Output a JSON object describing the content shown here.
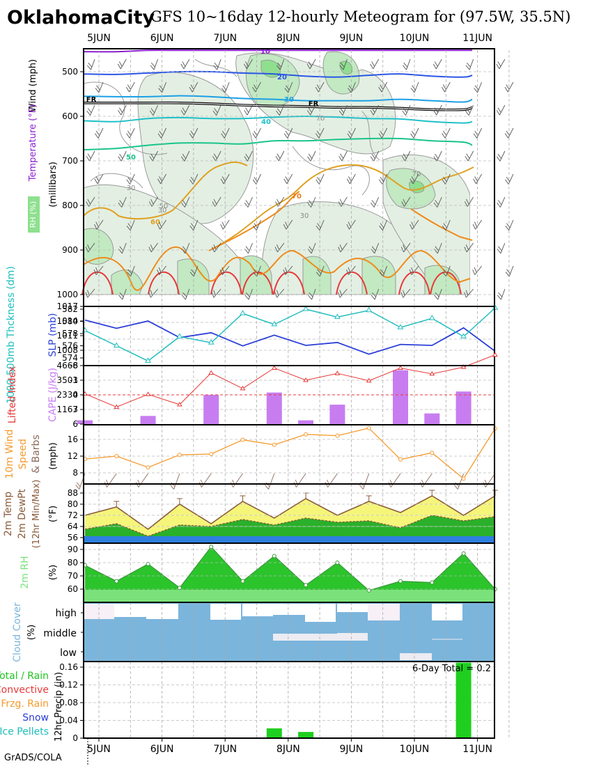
{
  "header": {
    "city": "OklahomaCity",
    "title": "GFS 10~16day 12-hourly Meteogram for (97.5W, 35.5N)"
  },
  "footer": {
    "credit": "GrADS/COLA"
  },
  "days": [
    "5JUN",
    "6JUN",
    "7JUN",
    "8JUN",
    "9JUN",
    "10JUN",
    "11JUN"
  ],
  "colors": {
    "rh_light": "#e3efe3",
    "rh_mid": "#c2e9c2",
    "rh_dark": "#8ee08e",
    "slp": "#2b3fd6",
    "thickness": "#1fbdbd",
    "lifted": "#e83838",
    "cape": "#c77df0",
    "wind": "#f59a2c",
    "barb": "#8a6a5a",
    "temp_fill": "#f5f57a",
    "dew_fill": "#2ab02a",
    "cold_band": "#2e7fe0",
    "rh2m_dark": "#2bc42b",
    "rh2m_light": "#7be27b",
    "cloud": "#7bb5dc",
    "rain": "#1fcf1f"
  },
  "chart_data": [
    {
      "type": "contour",
      "panel": "upper-air",
      "ylabel": [
        "Wind (mph)",
        "Temperature (°F)",
        "RH (%)",
        "(millibars)"
      ],
      "yticks": [
        500,
        600,
        700,
        800,
        900,
        1000
      ],
      "ylim": [
        1000,
        450
      ],
      "freezing_label": "FR",
      "contours": [
        {
          "label": "10",
          "color": "#8a1fd0",
          "p": [
            455,
            455,
            452,
            452,
            452,
            452,
            452,
            452,
            452,
            452,
            452,
            452,
            452,
            452
          ]
        },
        {
          "label": "20",
          "color": "#2a56e6",
          "p": [
            505,
            506,
            503,
            500,
            500,
            503,
            505,
            510,
            512,
            508,
            505,
            510,
            512,
            508
          ]
        },
        {
          "label": "30",
          "color": "#1aa0e6",
          "p": [
            555,
            556,
            556,
            554,
            556,
            560,
            562,
            565,
            565,
            565,
            562,
            565,
            568,
            562
          ]
        },
        {
          "label": "FR",
          "color": "#000000",
          "p": [
            570,
            570,
            570,
            570,
            572,
            575,
            577,
            578,
            580,
            580,
            582,
            585,
            585,
            580
          ]
        },
        {
          "label": "40",
          "color": "#1ec0c8",
          "p": [
            610,
            612,
            605,
            603,
            605,
            605,
            602,
            600,
            602,
            605,
            606,
            612,
            615,
            612
          ]
        },
        {
          "label": "50",
          "color": "#19c48a",
          "p": [
            675,
            672,
            665,
            660,
            660,
            662,
            655,
            655,
            652,
            650,
            650,
            655,
            658,
            665
          ]
        }
      ],
      "temp_labels": [
        "10",
        "20",
        "30",
        "40",
        "50",
        "60",
        "70",
        "FR"
      ],
      "rh_labels": [
        "30",
        "50",
        "70"
      ]
    },
    {
      "type": "line",
      "panel": "slp-thickness",
      "ylabel_left": "1000-500mb Thckness (dm)",
      "ylabel_right": "SLP (mb)",
      "thickness_ticks": [
        574,
        576,
        578,
        580,
        582
      ],
      "slp_ticks": [
        1008,
        1011,
        1014,
        1017
      ],
      "slp": {
        "name": "SLP (mb)",
        "values": [
          1014.2,
          1012.5,
          1014.0,
          1010.6,
          1011.6,
          1008.9,
          1011.1,
          1009.0,
          1009.6,
          1007.2,
          1009.2,
          1009.0,
          1012.6,
          1007.8
        ]
      },
      "thickness": {
        "name": "1000-500mb Thckness (dm)",
        "values": [
          578.5,
          576.0,
          573.5,
          577.5,
          576.5,
          581.3,
          579.5,
          582.0,
          580.7,
          581.8,
          579.0,
          580.5,
          577.5,
          582.2
        ]
      }
    },
    {
      "type": "bar",
      "panel": "cape-lifted",
      "ylabel_left": "Lifted Index",
      "ylabel_right": "CAPE (J/kg)",
      "li_ticks": [
        -6,
        -3,
        0,
        3,
        6
      ],
      "cape_ticks": [
        1167,
        2334,
        3501,
        4668
      ],
      "lifted_index": [
        -0.2,
        2.5,
        -0.1,
        2.0,
        -4.5,
        -1.3,
        -5.5,
        -3.0,
        -4.4,
        -2.9,
        -5.5,
        -4.3,
        -5.7,
        -8.2
      ],
      "cape": [
        300,
        0,
        650,
        0,
        2330,
        0,
        2520,
        300,
        1550,
        0,
        4300,
        850,
        2600,
        0
      ]
    },
    {
      "type": "line",
      "panel": "wind10m",
      "ylabel_left": "10m Wind Speed & Barbs",
      "ylabel_right": "(mph)",
      "yticks": [
        8,
        12,
        16
      ],
      "values": [
        11.3,
        12.0,
        9.3,
        12.3,
        12.5,
        15.9,
        14.7,
        17.2,
        16.9,
        18.7,
        11.2,
        12.8,
        6.6,
        18.6
      ]
    },
    {
      "type": "area",
      "panel": "temp2m",
      "ylabel_left": "2m Temp 2m DewPt (12hr Min/Max)",
      "ylabel_right": "(°F)",
      "yticks": [
        56,
        64,
        72,
        80,
        88
      ],
      "temperature": [
        72,
        78,
        62,
        80,
        66,
        82,
        70,
        84,
        72,
        82,
        74,
        86,
        72,
        86
      ],
      "dewpoint": [
        62,
        66,
        57,
        65,
        64,
        69,
        65,
        70,
        67,
        68,
        63,
        72,
        68,
        71
      ]
    },
    {
      "type": "area",
      "panel": "rh2m",
      "ylabel_left": "2m RH",
      "ylabel_right": "(%)",
      "yticks": [
        60,
        70,
        80,
        90
      ],
      "values": [
        78,
        66,
        79,
        61,
        92,
        66,
        85,
        63,
        80,
        59,
        66,
        65,
        87,
        60
      ]
    },
    {
      "type": "heatmap",
      "panel": "cloud",
      "ylabel_left": "Cloud Cover",
      "ylabel_right": "(%)",
      "levels": [
        "high",
        "middle",
        "low"
      ]
    },
    {
      "type": "bar",
      "panel": "precip",
      "ylabel": "12hr Precip (in)",
      "yticks": [
        0,
        0.04,
        0.08,
        0.12,
        0.16
      ],
      "total_label": "6-Day Total = 0.2",
      "legend": [
        {
          "label": "Total / Rain",
          "color": "#1fc41f"
        },
        {
          "label": "Convective",
          "color": "#e83838"
        },
        {
          "label": "Frzg. Rain",
          "color": "#f59a2c"
        },
        {
          "label": "Snow",
          "color": "#2b3fd6"
        },
        {
          "label": "Ice Pellets",
          "color": "#1fbdbd"
        }
      ],
      "values": [
        0,
        0,
        0,
        0,
        0,
        0,
        0.022,
        0.014,
        0,
        0,
        0,
        0,
        0.17,
        0
      ]
    }
  ]
}
